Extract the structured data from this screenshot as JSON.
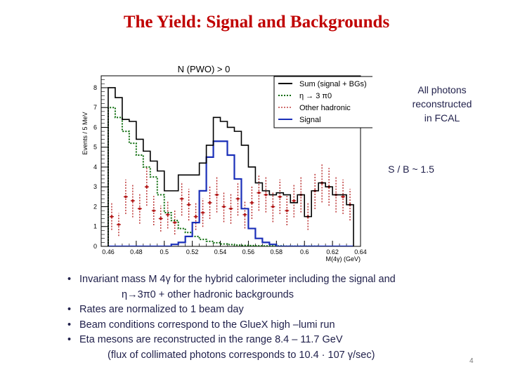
{
  "slide": {
    "title": "The Yield:  Signal and Backgrounds",
    "side_note": [
      "All photons",
      "reconstructed",
      "in FCAL"
    ],
    "sb_ratio": "S / B ~ 1.5",
    "bullets": [
      {
        "line1": "Invariant mass M 4γ for the hybrid calorimeter including the signal and",
        "line2": "η→3π0  +  other hadronic backgrounds"
      },
      {
        "line1": "Rates are normalized to 1 beam day"
      },
      {
        "line1": "Beam conditions correspond to the GlueX  high –lumi run"
      },
      {
        "line1": "Eta mesons are reconstructed in the range 8.4 – 11.7 GeV",
        "line2": "(flux of collimated photons corresponds to 10.4 · 107 γ/sec)"
      }
    ],
    "page_number": "4"
  },
  "chart_data": {
    "type": "histogram",
    "title": "N (PWO) > 0",
    "xlabel": "M(4γ)  (GeV)",
    "ylabel": "Events / 5 MeV",
    "xlim": [
      0.455,
      0.64
    ],
    "ylim": [
      0,
      8.6
    ],
    "bin_width": 0.005,
    "bin_edges_start": 0.46,
    "xticks": [
      {
        "v": 0.46,
        "label": "0.46"
      },
      {
        "v": 0.48,
        "label": "0.48"
      },
      {
        "v": 0.5,
        "label": "0.5"
      },
      {
        "v": 0.52,
        "label": "0.52"
      },
      {
        "v": 0.54,
        "label": "0.54"
      },
      {
        "v": 0.56,
        "label": "0.56"
      },
      {
        "v": 0.58,
        "label": "0.58"
      },
      {
        "v": 0.6,
        "label": "0.6"
      },
      {
        "v": 0.62,
        "label": "0.62"
      },
      {
        "v": 0.64,
        "label": "0.64"
      }
    ],
    "yticks": [
      {
        "v": 0,
        "label": "0"
      },
      {
        "v": 1,
        "label": "1"
      },
      {
        "v": 2,
        "label": "2"
      },
      {
        "v": 3,
        "label": "3"
      },
      {
        "v": 4,
        "label": "4"
      },
      {
        "v": 5,
        "label": "5"
      },
      {
        "v": 6,
        "label": "6"
      },
      {
        "v": 7,
        "label": "7"
      },
      {
        "v": 8,
        "label": "8"
      }
    ],
    "legend_position": "top-right",
    "series": [
      {
        "name": "Sum (signal + BGs)",
        "color": "#000000",
        "style": "solid-step",
        "values": [
          8,
          7.5,
          6.4,
          6.3,
          5.4,
          4.8,
          4.3,
          3.8,
          2.8,
          2.8,
          3.6,
          3.6,
          3.6,
          4.2,
          5.1,
          6.5,
          6.3,
          6.0,
          5.8,
          5.1,
          4.0,
          3.2,
          2.8,
          2.6,
          2.7,
          2.6,
          2.2,
          2.6,
          1.5,
          2.8,
          3.2,
          3.0,
          2.6,
          2.6,
          2.1
        ]
      },
      {
        "name": "η → 3 π0",
        "color": "#0a6b0a",
        "style": "dotted-step",
        "values": [
          7.0,
          6.5,
          5.8,
          5.2,
          4.6,
          4.0,
          3.5,
          2.6,
          1.7,
          1.3,
          0.9,
          0.7,
          0.5,
          0.35,
          0.25,
          0.18,
          0.12,
          0.09,
          0.06,
          0.05,
          0.04,
          0.03,
          0.02,
          0.02,
          0.02,
          0.01,
          0.01,
          0.01,
          0.01,
          0.01,
          0.0,
          0.0,
          0.0,
          0.0,
          0.0
        ]
      },
      {
        "name": "Other hadronic",
        "color": "#b21818",
        "style": "points-errorbars",
        "values": [
          1.5,
          1.1,
          2.5,
          2.3,
          1.9,
          3.0,
          1.8,
          1.4,
          1.6,
          1.2,
          2.4,
          2.1,
          1.5,
          1.7,
          2.2,
          2.6,
          2.0,
          1.9,
          2.4,
          1.6,
          2.2,
          2.7,
          2.6,
          2.0,
          2.5,
          1.8,
          2.3,
          2.6,
          1.5,
          2.8,
          3.2,
          3.0,
          2.6,
          2.5,
          2.1
        ]
      },
      {
        "name": "Signal",
        "color": "#1a2fb8",
        "style": "solid-step",
        "values": [
          0,
          0,
          0,
          0,
          0,
          0,
          0,
          0,
          0,
          0.1,
          0.2,
          0.5,
          1.2,
          2.8,
          4.5,
          5.3,
          5.3,
          4.6,
          3.4,
          1.9,
          0.9,
          0.4,
          0.2,
          0.1,
          0,
          0,
          0,
          0,
          0,
          0,
          0,
          0,
          0,
          0,
          0
        ]
      }
    ]
  }
}
